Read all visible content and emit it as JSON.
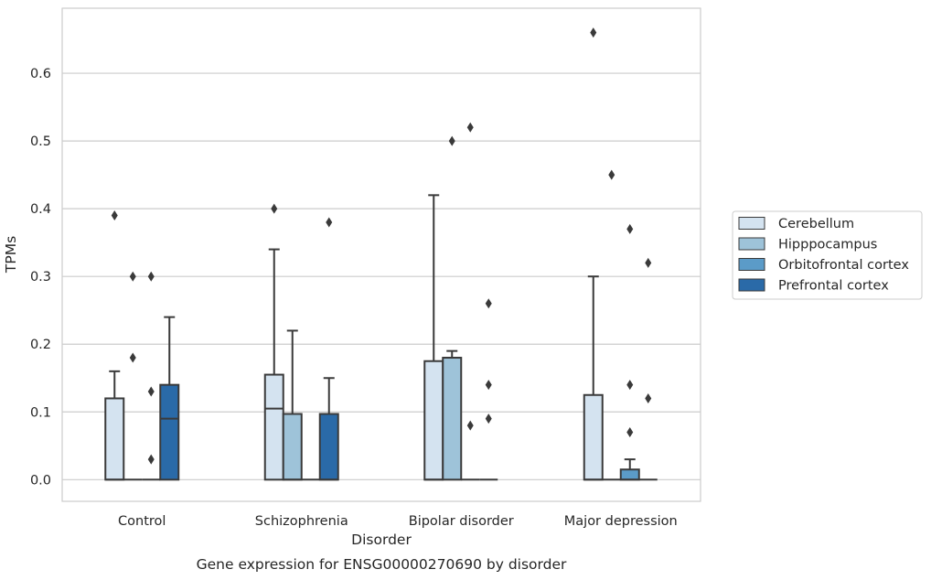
{
  "chart_data": {
    "type": "box",
    "title": "",
    "caption": "Gene expression for ENSG00000270690 by disorder",
    "xlabel": "Disorder",
    "ylabel": "TPMs",
    "ylim": [
      -0.032,
      0.696
    ],
    "yticks": [
      "0.0",
      "0.1",
      "0.2",
      "0.3",
      "0.4",
      "0.5",
      "0.6"
    ],
    "grid": "horizontal",
    "legend_position": "right",
    "categories": [
      "Control",
      "Schizophrenia",
      "Bipolar disorder",
      "Major depression"
    ],
    "series": [
      {
        "name": "Cerebellum",
        "color": "#d4e3f0",
        "boxes": [
          {
            "q1": 0.0,
            "median": 0.0,
            "q3": 0.12,
            "whisker_low": 0.0,
            "whisker_high": 0.16,
            "outliers": [
              0.39
            ]
          },
          {
            "q1": 0.0,
            "median": 0.105,
            "q3": 0.155,
            "whisker_low": 0.0,
            "whisker_high": 0.34,
            "outliers": [
              0.4
            ]
          },
          {
            "q1": 0.0,
            "median": 0.0,
            "q3": 0.175,
            "whisker_low": 0.0,
            "whisker_high": 0.42,
            "outliers": []
          },
          {
            "q1": 0.0,
            "median": 0.0,
            "q3": 0.125,
            "whisker_low": 0.0,
            "whisker_high": 0.3,
            "outliers": [
              0.66
            ]
          }
        ]
      },
      {
        "name": "Hipppocampus",
        "color": "#9ec3d9",
        "boxes": [
          {
            "q1": 0.0,
            "median": 0.0,
            "q3": 0.0,
            "whisker_low": 0.0,
            "whisker_high": 0.0,
            "outliers": [
              0.3,
              0.18
            ]
          },
          {
            "q1": 0.0,
            "median": 0.0,
            "q3": 0.097,
            "whisker_low": 0.0,
            "whisker_high": 0.22,
            "outliers": []
          },
          {
            "q1": 0.0,
            "median": 0.18,
            "q3": 0.18,
            "whisker_low": 0.0,
            "whisker_high": 0.19,
            "outliers": [
              0.5
            ]
          },
          {
            "q1": 0.0,
            "median": 0.0,
            "q3": 0.0,
            "whisker_low": 0.0,
            "whisker_high": 0.0,
            "outliers": [
              0.45
            ]
          }
        ]
      },
      {
        "name": "Orbitofrontal cortex",
        "color": "#5b9bc8",
        "boxes": [
          {
            "q1": 0.0,
            "median": 0.0,
            "q3": 0.0,
            "whisker_low": 0.0,
            "whisker_high": 0.0,
            "outliers": [
              0.3,
              0.13,
              0.03
            ]
          },
          {
            "q1": 0.0,
            "median": 0.0,
            "q3": 0.0,
            "whisker_low": 0.0,
            "whisker_high": 0.0,
            "outliers": []
          },
          {
            "q1": 0.0,
            "median": 0.0,
            "q3": 0.0,
            "whisker_low": 0.0,
            "whisker_high": 0.0,
            "outliers": [
              0.52,
              0.08
            ]
          },
          {
            "q1": 0.0,
            "median": 0.0,
            "q3": 0.015,
            "whisker_low": 0.0,
            "whisker_high": 0.03,
            "outliers": [
              0.37,
              0.14,
              0.07
            ]
          }
        ]
      },
      {
        "name": "Prefrontal cortex",
        "color": "#2a6aa8",
        "boxes": [
          {
            "q1": 0.0,
            "median": 0.09,
            "q3": 0.14,
            "whisker_low": 0.0,
            "whisker_high": 0.24,
            "outliers": []
          },
          {
            "q1": 0.0,
            "median": 0.0,
            "q3": 0.097,
            "whisker_low": 0.0,
            "whisker_high": 0.15,
            "outliers": [
              0.38
            ]
          },
          {
            "q1": 0.0,
            "median": 0.0,
            "q3": 0.0,
            "whisker_low": 0.0,
            "whisker_high": 0.0,
            "outliers": [
              0.26,
              0.14,
              0.09
            ]
          },
          {
            "q1": 0.0,
            "median": 0.0,
            "q3": 0.0,
            "whisker_low": 0.0,
            "whisker_high": 0.0,
            "outliers": [
              0.32,
              0.12
            ]
          }
        ]
      }
    ]
  }
}
